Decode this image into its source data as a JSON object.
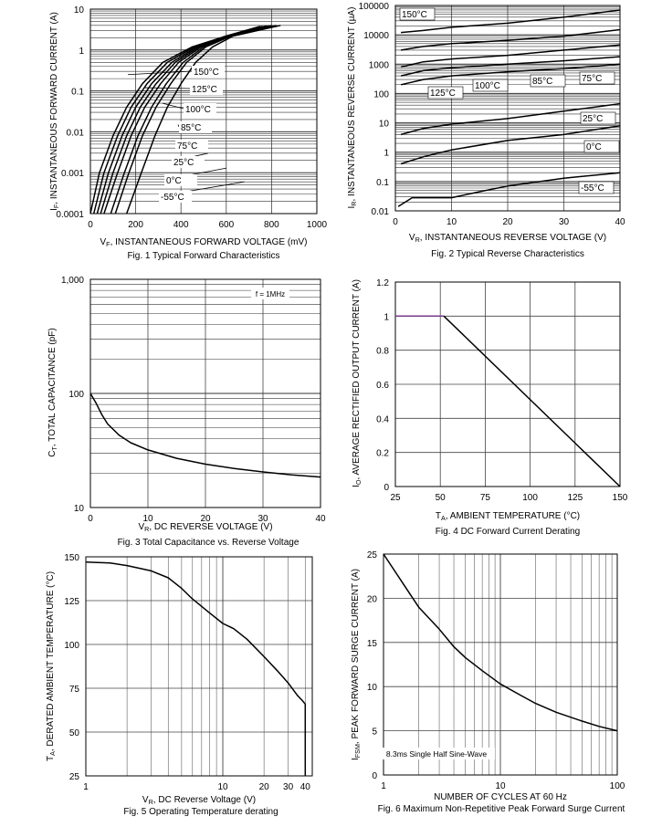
{
  "chart_data": [
    {
      "type": "line",
      "caption": "Fig. 1 Typical Forward Characteristics",
      "xlabel": "V_F, INSTANTANEOUS FORWARD VOLTAGE (mV)",
      "ylabel": "I_F, INSTANTANEOUS FORWARD CURRENT (A)",
      "xlim": [
        0,
        1000
      ],
      "ylim": [
        0.0001,
        10
      ],
      "yscale": "log",
      "grid": true,
      "x_ticks": [
        0,
        200,
        400,
        600,
        800,
        1000
      ],
      "x_tick_labels": [
        "0",
        "200",
        "400",
        "600",
        "800",
        "1000"
      ],
      "y_ticks": [
        0.0001,
        0.001,
        0.01,
        0.1,
        1,
        10
      ],
      "y_tick_labels": [
        "0.0001",
        "0.001",
        "0.01",
        "0.1",
        "1",
        "10"
      ],
      "series": [
        {
          "name": "150°C",
          "x": [
            0,
            40,
            100,
            160,
            230,
            320,
            450,
            600,
            750
          ],
          "y": [
            0.0001,
            0.001,
            0.008,
            0.04,
            0.15,
            0.5,
            1.2,
            2.2,
            3.8
          ]
        },
        {
          "name": "125°C",
          "x": [
            15,
            60,
            120,
            180,
            250,
            340,
            460,
            600,
            760
          ],
          "y": [
            0.0001,
            0.001,
            0.008,
            0.04,
            0.15,
            0.5,
            1.2,
            2.2,
            3.8
          ]
        },
        {
          "name": "100°C",
          "x": [
            30,
            80,
            140,
            200,
            270,
            360,
            470,
            600,
            770
          ],
          "y": [
            0.0001,
            0.001,
            0.008,
            0.04,
            0.15,
            0.5,
            1.2,
            2.2,
            3.8
          ]
        },
        {
          "name": "85°C",
          "x": [
            45,
            100,
            160,
            220,
            290,
            375,
            480,
            605,
            780
          ],
          "y": [
            0.0001,
            0.001,
            0.008,
            0.04,
            0.15,
            0.5,
            1.2,
            2.2,
            3.9
          ]
        },
        {
          "name": "75°C",
          "x": [
            60,
            120,
            180,
            240,
            310,
            390,
            490,
            610,
            790
          ],
          "y": [
            0.0001,
            0.001,
            0.008,
            0.04,
            0.15,
            0.5,
            1.2,
            2.2,
            3.9
          ]
        },
        {
          "name": "25°C",
          "x": [
            90,
            150,
            210,
            270,
            335,
            410,
            500,
            615,
            800
          ],
          "y": [
            0.0001,
            0.001,
            0.008,
            0.04,
            0.15,
            0.5,
            1.2,
            2.2,
            4.0
          ]
        },
        {
          "name": "0°C",
          "x": [
            110,
            170,
            230,
            290,
            355,
            425,
            510,
            620,
            820
          ],
          "y": [
            0.0001,
            0.001,
            0.008,
            0.04,
            0.15,
            0.5,
            1.2,
            2.2,
            4.0
          ]
        },
        {
          "name": "-55°C",
          "x": [
            160,
            225,
            285,
            340,
            400,
            465,
            540,
            630,
            840
          ],
          "y": [
            0.0001,
            0.001,
            0.008,
            0.04,
            0.15,
            0.5,
            1.2,
            2.2,
            4.0
          ]
        }
      ]
    },
    {
      "type": "line",
      "caption": "Fig. 2 Typical Reverse Characteristics",
      "xlabel": "V_R, INSTANTANEOUS REVERSE VOLTAGE (V)",
      "ylabel": "I_R, INSTANTANEOUS REVERSE CURRENT (µA)",
      "xlim": [
        0,
        40
      ],
      "ylim": [
        0.01,
        100000
      ],
      "yscale": "log",
      "grid": true,
      "x_ticks": [
        0,
        10,
        20,
        30,
        40
      ],
      "x_tick_labels": [
        "0",
        "10",
        "20",
        "30",
        "40"
      ],
      "y_ticks": [
        0.01,
        0.1,
        1,
        10,
        100,
        1000,
        10000,
        100000
      ],
      "y_tick_labels": [
        "0.01",
        "0.1",
        "1",
        "10",
        "100",
        "1000",
        "10000",
        "100000"
      ],
      "series": [
        {
          "name": "150°C",
          "x": [
            1,
            5,
            10,
            20,
            30,
            40
          ],
          "y": [
            12000,
            14000,
            18000,
            25000,
            40000,
            70000
          ]
        },
        {
          "name": "125°C",
          "x": [
            1,
            5,
            10,
            20,
            30,
            40
          ],
          "y": [
            3000,
            4000,
            5000,
            6500,
            9000,
            15000
          ]
        },
        {
          "name": "100°C",
          "x": [
            1,
            5,
            10,
            20,
            30,
            40
          ],
          "y": [
            800,
            1200,
            1500,
            2000,
            3000,
            4500
          ]
        },
        {
          "name": "85°C",
          "x": [
            1,
            5,
            10,
            20,
            30,
            40
          ],
          "y": [
            400,
            600,
            750,
            1000,
            1300,
            1800
          ]
        },
        {
          "name": "75°C",
          "x": [
            1,
            5,
            10,
            20,
            30,
            40
          ],
          "y": [
            200,
            300,
            400,
            550,
            700,
            1000
          ]
        },
        {
          "name": "25°C",
          "x": [
            1,
            5,
            10,
            20,
            30,
            40
          ],
          "y": [
            4,
            6.5,
            9,
            14,
            25,
            45
          ]
        },
        {
          "name": "0°C",
          "x": [
            1,
            5,
            10,
            20,
            30,
            40
          ],
          "y": [
            0.4,
            0.7,
            1.2,
            2.5,
            4,
            8
          ]
        },
        {
          "name": "-55°C",
          "x": [
            0.5,
            3,
            5,
            10,
            15,
            20,
            30,
            40
          ],
          "y": [
            0.014,
            0.028,
            0.028,
            0.028,
            0.045,
            0.07,
            0.13,
            0.2
          ]
        }
      ]
    },
    {
      "type": "line",
      "caption": "Fig. 3 Total Capacitance vs. Reverse Voltage",
      "xlabel": "V_R, DC REVERSE VOLTAGE (V)",
      "ylabel": "C_T, TOTAL CAPACITANCE (pF)",
      "annotation": "f = 1MHz",
      "xlim": [
        0,
        40
      ],
      "ylim": [
        10,
        1000
      ],
      "yscale": "log",
      "grid": true,
      "x_ticks": [
        0,
        10,
        20,
        30,
        40
      ],
      "x_tick_labels": [
        "0",
        "10",
        "20",
        "30",
        "40"
      ],
      "y_ticks": [
        10,
        100,
        1000
      ],
      "y_tick_labels": [
        "10",
        "100",
        "1,000"
      ],
      "series": [
        {
          "x": [
            0,
            1,
            2,
            3,
            5,
            7,
            10,
            15,
            20,
            25,
            30,
            35,
            40
          ],
          "y": [
            100,
            82,
            65,
            54,
            43,
            37,
            32,
            27,
            24,
            22,
            20.5,
            19.3,
            18.5
          ]
        }
      ]
    },
    {
      "type": "line",
      "caption": "Fig. 4 DC Forward Current Derating",
      "xlabel": "T_A, AMBIENT TEMPERATURE (°C)",
      "ylabel": "I_O, AVERAGE RECTIFIED OUTPUT CURRENT (A)",
      "xlim": [
        25,
        150
      ],
      "ylim": [
        0,
        1.2
      ],
      "grid": true,
      "x_ticks": [
        25,
        50,
        75,
        100,
        125,
        150
      ],
      "x_tick_labels": [
        "25",
        "50",
        "75",
        "100",
        "125",
        "150"
      ],
      "y_ticks": [
        0,
        0.2,
        0.4,
        0.6,
        0.8,
        1,
        1.2
      ],
      "y_tick_labels": [
        "0",
        "0.2",
        "0.4",
        "0.6",
        "0.8",
        "1",
        "1.2"
      ],
      "series": [
        {
          "x": [
            25,
            52
          ],
          "y": [
            1,
            1
          ],
          "color": "#7a3b8a"
        },
        {
          "x": [
            52,
            150
          ],
          "y": [
            1,
            0
          ],
          "color": "#000000"
        }
      ]
    },
    {
      "type": "line",
      "caption": "Fig. 5 Operating Temperature derating",
      "xlabel": "V_R, DC Reverse Voltage (V)",
      "ylabel": "T_A, DERATED AMBIENT TEMPERATURE (°C)",
      "xlim": [
        1,
        45
      ],
      "xscale": "log",
      "ylim": [
        25,
        150
      ],
      "grid": true,
      "x_ticks": [
        1,
        10,
        20,
        30,
        40
      ],
      "x_tick_labels": [
        "1",
        "10",
        "20",
        "30",
        "40"
      ],
      "y_ticks": [
        25,
        50,
        75,
        100,
        125,
        150
      ],
      "y_tick_labels": [
        "25",
        "50",
        "75",
        "100",
        "125",
        "150"
      ],
      "series": [
        {
          "x": [
            1,
            1.5,
            2,
            3,
            4,
            5,
            6,
            8,
            10,
            12,
            15,
            20,
            25,
            30,
            35,
            38,
            40,
            40
          ],
          "y": [
            147,
            146.5,
            145,
            142,
            138,
            132,
            126,
            118,
            112,
            109,
            103,
            93,
            85,
            78,
            71,
            68,
            66,
            25
          ]
        }
      ]
    },
    {
      "type": "line",
      "caption": "Fig. 6 Maximum Non-Repetitive Peak Forward Surge Current",
      "xlabel": "NUMBER OF CYCLES AT 60 Hz",
      "ylabel": "I_FSM, PEAK FORWARD SURGE CURRENT (A)",
      "annotation": "8.3ms Single Half Sine-Wave",
      "xlim": [
        1,
        100
      ],
      "xscale": "log",
      "ylim": [
        0,
        25
      ],
      "grid": true,
      "x_ticks": [
        1,
        10,
        100
      ],
      "x_tick_labels": [
        "1",
        "10",
        "100"
      ],
      "y_ticks": [
        0,
        5,
        10,
        15,
        20,
        25
      ],
      "y_tick_labels": [
        "0",
        "5",
        "10",
        "15",
        "20",
        "25"
      ],
      "series": [
        {
          "x": [
            1,
            1.5,
            2,
            3,
            4,
            5,
            7,
            10,
            15,
            20,
            30,
            50,
            70,
            100
          ],
          "y": [
            25,
            21.5,
            19,
            16.5,
            14.5,
            13.3,
            11.8,
            10.3,
            9,
            8.1,
            7.1,
            6.1,
            5.5,
            5
          ]
        }
      ]
    }
  ]
}
